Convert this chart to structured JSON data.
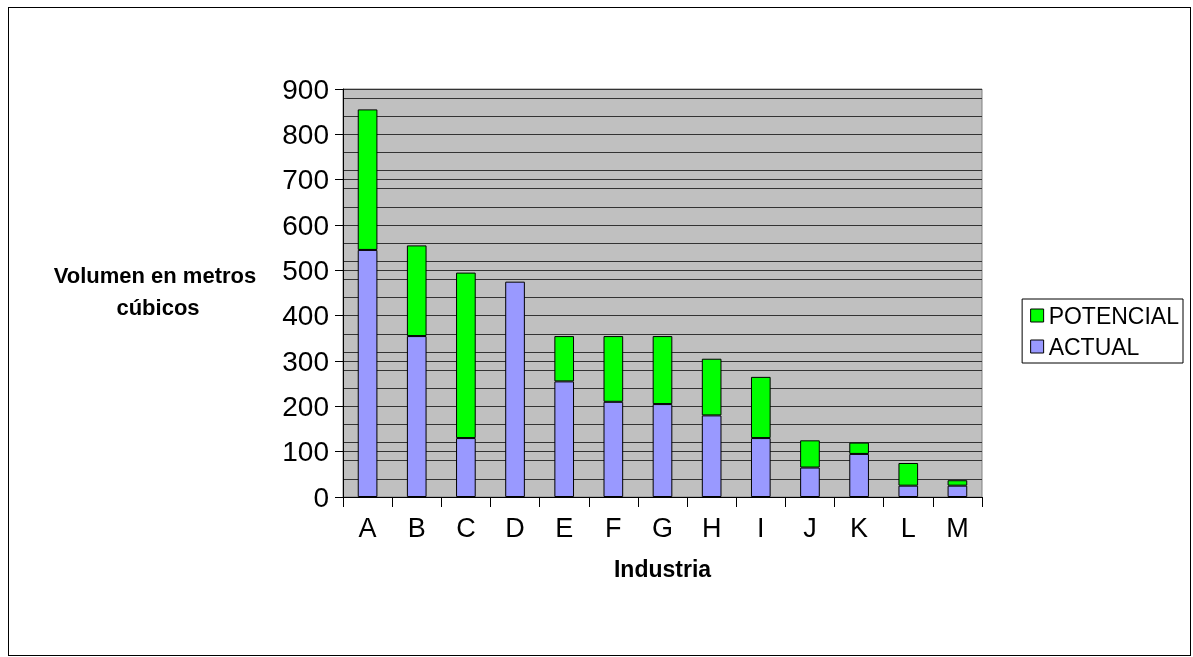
{
  "chart_data": {
    "type": "bar",
    "stacked": true,
    "xlabel": "Industria",
    "ylabel": "Volumen en metros cúbicos",
    "categories": [
      "A",
      "B",
      "C",
      "D",
      "E",
      "F",
      "G",
      "H",
      "I",
      "J",
      "K",
      "L",
      "M"
    ],
    "series": [
      {
        "name": "ACTUAL",
        "color": "#9999ff",
        "values": [
          545,
          355,
          130,
          475,
          255,
          210,
          205,
          180,
          130,
          65,
          95,
          25,
          25
        ]
      },
      {
        "name": "POTENCIAL",
        "color": "#00ff00",
        "values": [
          310,
          200,
          365,
          0,
          100,
          145,
          150,
          125,
          135,
          60,
          25,
          50,
          12
        ]
      }
    ],
    "ylim": [
      0,
      900
    ],
    "yticks": [
      0,
      100,
      200,
      300,
      400,
      500,
      600,
      700,
      800,
      900
    ],
    "grid": "y",
    "legend": "right"
  }
}
